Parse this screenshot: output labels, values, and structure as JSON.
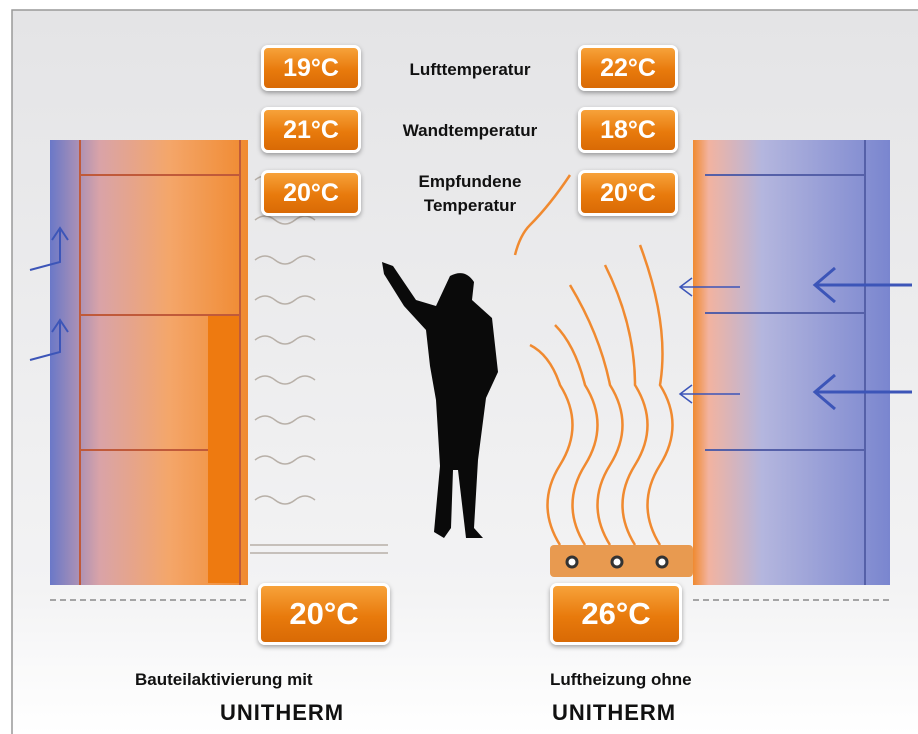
{
  "rows": [
    {
      "left": "19°C",
      "label": [
        "Lufttemperatur"
      ],
      "right": "22°C"
    },
    {
      "left": "21°C",
      "label": [
        "Wandtemperatur"
      ],
      "right": "18°C"
    },
    {
      "left": "20°C",
      "label": [
        "Empfundene",
        "Temperatur"
      ],
      "right": "20°C"
    }
  ],
  "floor": {
    "left": "20°C",
    "right": "26°C"
  },
  "captions": [
    {
      "lines": [
        "Bauteilaktivierung mit",
        "UNITHERM"
      ]
    },
    {
      "lines": [
        "Luftheizung ohne",
        "UNITHERM"
      ]
    }
  ]
}
